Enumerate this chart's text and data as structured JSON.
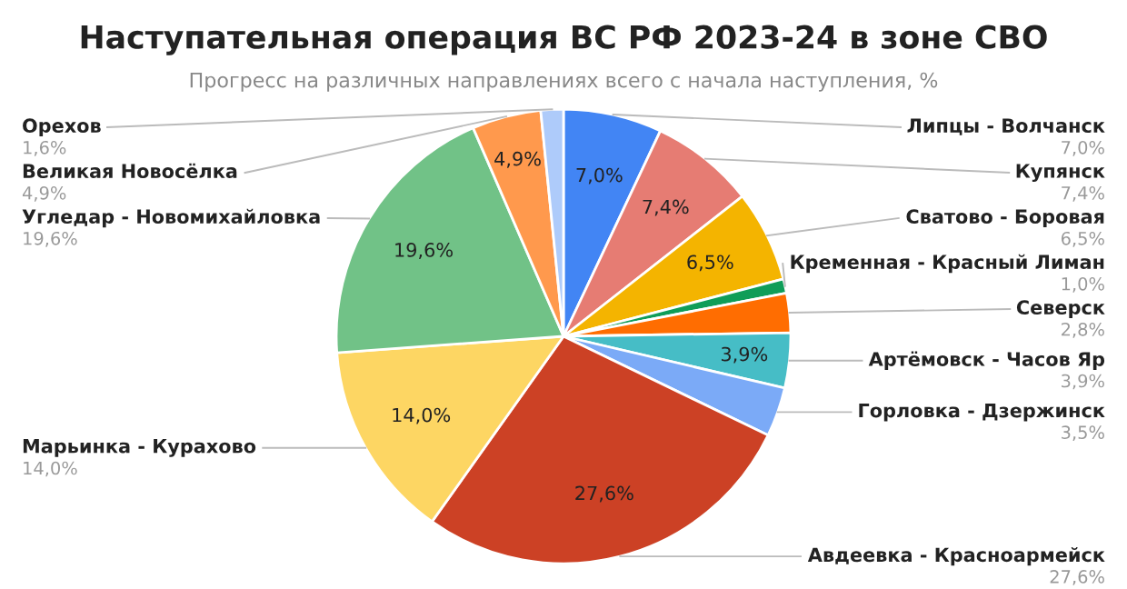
{
  "chart_data": {
    "type": "pie",
    "title": "Наступательная операция ВС РФ 2023-24 в зоне СВО",
    "subtitle": "Прогресс на различных направлениях всего с начала наступления, %",
    "categories": [
      "Липцы - Волчанск",
      "Купянск",
      "Сватово - Боровая",
      "Кременная - Красный Лиман",
      "Северск",
      "Артёмовск - Часов Яр",
      "Горловка - Дзержинск",
      "Авдеевка - Красноармейск",
      "Марьинка - Курахово",
      "Угледар - Новомихайловка",
      "Великая Новосёлка",
      "Орехов"
    ],
    "values": [
      7.0,
      7.4,
      6.5,
      1.0,
      2.8,
      3.9,
      3.5,
      27.6,
      14.0,
      19.6,
      4.9,
      1.6
    ],
    "colors": [
      "#4285f4",
      "#e67c73",
      "#f4b400",
      "#0f9d58",
      "#ff6d01",
      "#46bdc6",
      "#7baaf7",
      "#cc4125",
      "#fdd663",
      "#71c287",
      "#ff994d",
      "#aecbfa"
    ],
    "value_labels": [
      "7,0%",
      "7,4%",
      "6,5%",
      "1,0%",
      "2,8%",
      "3,9%",
      "3,5%",
      "27,6%",
      "14,0%",
      "19,6%",
      "4,9%",
      "1,6%"
    ],
    "data_labels": true,
    "legend": false
  }
}
